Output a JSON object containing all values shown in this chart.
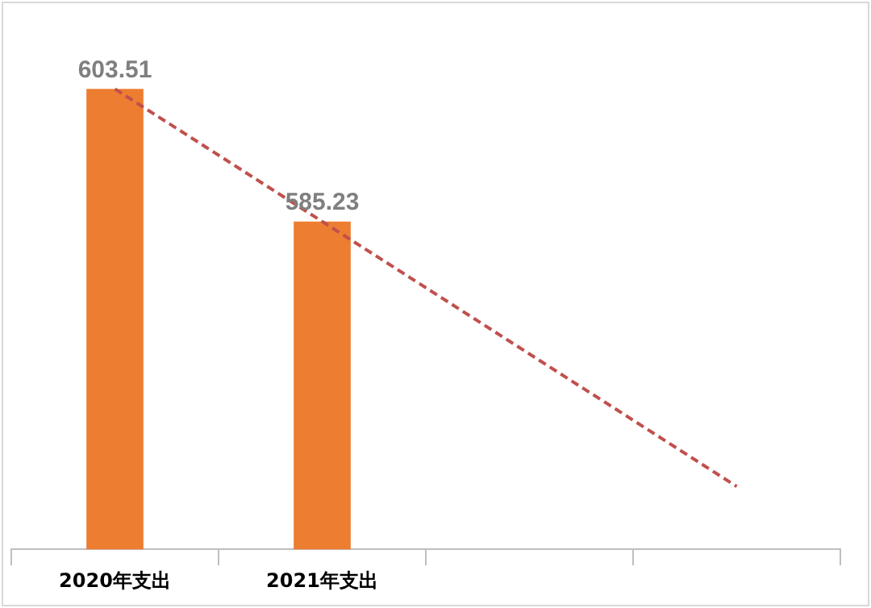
{
  "chart_data": {
    "type": "bar",
    "categories": [
      "2020年支出",
      "2021年支出",
      null,
      null
    ],
    "series": [
      {
        "color": "#ed7d31",
        "values": [
          603.51,
          585.23,
          null,
          null
        ],
        "value_labels": [
          "603.51",
          "585.23",
          null,
          null
        ]
      },
      {
        "type": "line",
        "color": "#c0504d",
        "line_style": "dashed",
        "marker": "none",
        "values": [
          603.51,
          585.23,
          566.95,
          548.67
        ]
      }
    ],
    "tick_labels": "x",
    "grid": false,
    "legend": false
  }
}
